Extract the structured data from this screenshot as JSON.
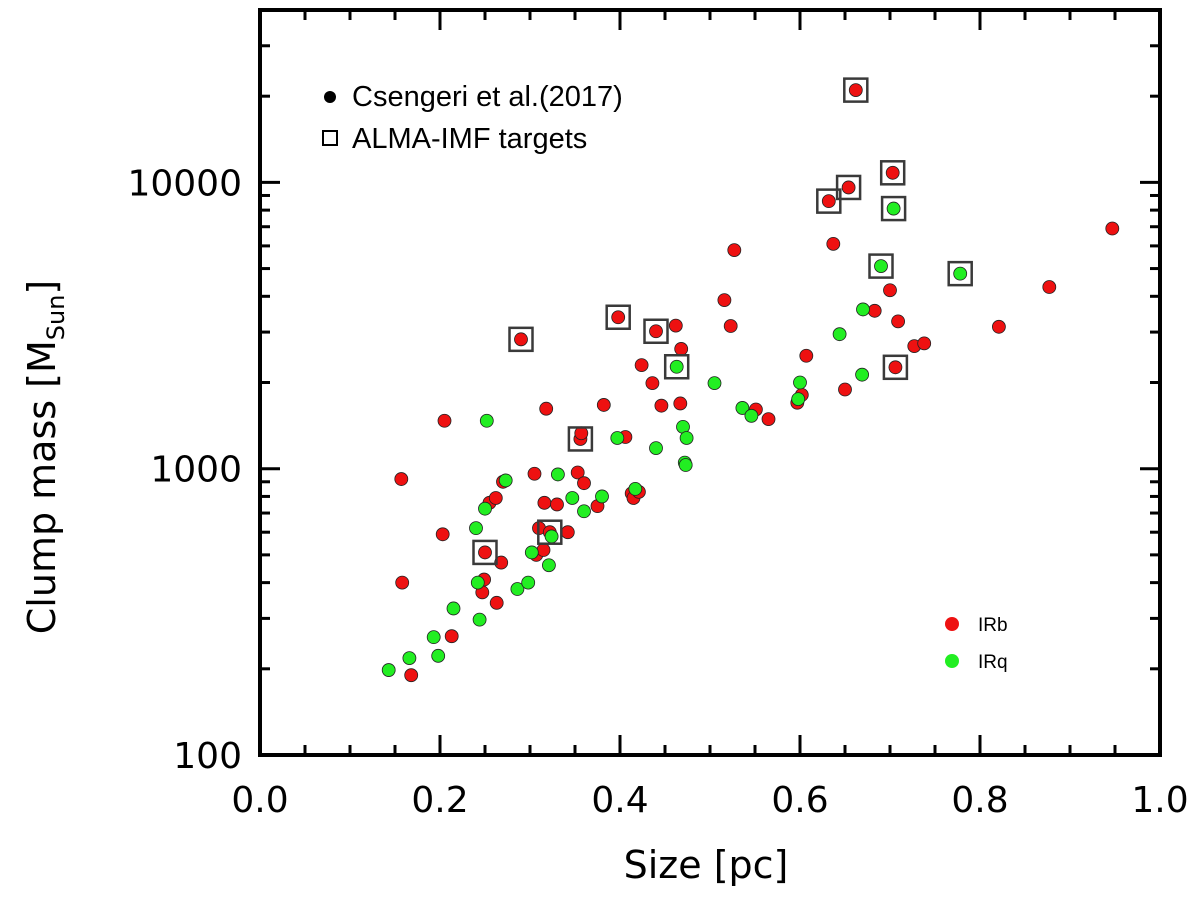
{
  "chart_data": {
    "type": "scatter",
    "xlabel": "Size [pc]",
    "ylabel": {
      "main": "Clump mass ",
      "bracket_open": "[",
      "symbol": "M",
      "subscript": "Sun",
      "bracket_close": "]"
    },
    "xlim": [
      0.0,
      1.0
    ],
    "ylim": [
      100,
      40000
    ],
    "yscale": "log",
    "x_ticks": [
      "0.0",
      "0.2",
      "0.4",
      "0.6",
      "0.8",
      "1.0"
    ],
    "x_tick_values": [
      0.0,
      0.2,
      0.4,
      0.6,
      0.8,
      1.0
    ],
    "y_ticks": [
      "100",
      "1000",
      "10000"
    ],
    "y_tick_values": [
      100,
      1000,
      10000
    ],
    "legend_top": [
      {
        "marker": "filled-circle",
        "label": "Csengeri et al.(2017)"
      },
      {
        "marker": "open-square",
        "label": "ALMA-IMF targets"
      }
    ],
    "legend_bottom": [
      {
        "name": "IRb",
        "color": "#ee1111"
      },
      {
        "name": "IRq",
        "color": "#22ee22"
      }
    ],
    "series": [
      {
        "name": "IRb",
        "color": "#ee1111",
        "points": [
          [
            0.157,
            920
          ],
          [
            0.158,
            400
          ],
          [
            0.168,
            190
          ],
          [
            0.203,
            590
          ],
          [
            0.205,
            1470
          ],
          [
            0.213,
            260
          ],
          [
            0.247,
            370
          ],
          [
            0.249,
            410
          ],
          [
            0.25,
            510
          ],
          [
            0.255,
            760
          ],
          [
            0.262,
            790
          ],
          [
            0.263,
            340
          ],
          [
            0.268,
            470
          ],
          [
            0.27,
            900
          ],
          [
            0.29,
            2830
          ],
          [
            0.305,
            960
          ],
          [
            0.307,
            500
          ],
          [
            0.31,
            620
          ],
          [
            0.315,
            520
          ],
          [
            0.316,
            760
          ],
          [
            0.318,
            1620
          ],
          [
            0.322,
            600
          ],
          [
            0.33,
            750
          ],
          [
            0.342,
            600
          ],
          [
            0.353,
            970
          ],
          [
            0.356,
            1270
          ],
          [
            0.357,
            1330
          ],
          [
            0.36,
            890
          ],
          [
            0.375,
            740
          ],
          [
            0.382,
            1670
          ],
          [
            0.398,
            3380
          ],
          [
            0.406,
            1290
          ],
          [
            0.413,
            820
          ],
          [
            0.415,
            790
          ],
          [
            0.421,
            830
          ],
          [
            0.424,
            2300
          ],
          [
            0.436,
            1990
          ],
          [
            0.44,
            3020
          ],
          [
            0.446,
            1660
          ],
          [
            0.462,
            3160
          ],
          [
            0.467,
            1690
          ],
          [
            0.468,
            2620
          ],
          [
            0.516,
            3880
          ],
          [
            0.523,
            3150
          ],
          [
            0.527,
            5800
          ],
          [
            0.551,
            1610
          ],
          [
            0.565,
            1490
          ],
          [
            0.597,
            1700
          ],
          [
            0.602,
            1810
          ],
          [
            0.607,
            2480
          ],
          [
            0.632,
            8600
          ],
          [
            0.637,
            6100
          ],
          [
            0.65,
            1890
          ],
          [
            0.654,
            9600
          ],
          [
            0.662,
            21000
          ],
          [
            0.683,
            3560
          ],
          [
            0.7,
            4200
          ],
          [
            0.703,
            10800
          ],
          [
            0.706,
            2260
          ],
          [
            0.709,
            3270
          ],
          [
            0.727,
            2680
          ],
          [
            0.738,
            2740
          ],
          [
            0.821,
            3130
          ],
          [
            0.877,
            4310
          ],
          [
            0.947,
            6900
          ]
        ]
      },
      {
        "name": "IRq",
        "color": "#22ee22",
        "points": [
          [
            0.143,
            198
          ],
          [
            0.166,
            218
          ],
          [
            0.193,
            258
          ],
          [
            0.198,
            222
          ],
          [
            0.215,
            325
          ],
          [
            0.24,
            620
          ],
          [
            0.242,
            400
          ],
          [
            0.244,
            297
          ],
          [
            0.25,
            725
          ],
          [
            0.252,
            1470
          ],
          [
            0.273,
            910
          ],
          [
            0.286,
            380
          ],
          [
            0.298,
            400
          ],
          [
            0.302,
            510
          ],
          [
            0.321,
            460
          ],
          [
            0.324,
            580
          ],
          [
            0.331,
            955
          ],
          [
            0.347,
            790
          ],
          [
            0.36,
            710
          ],
          [
            0.38,
            800
          ],
          [
            0.397,
            1280
          ],
          [
            0.417,
            850
          ],
          [
            0.44,
            1180
          ],
          [
            0.463,
            2270
          ],
          [
            0.47,
            1400
          ],
          [
            0.472,
            1050
          ],
          [
            0.473,
            1030
          ],
          [
            0.474,
            1280
          ],
          [
            0.505,
            1990
          ],
          [
            0.536,
            1630
          ],
          [
            0.546,
            1530
          ],
          [
            0.598,
            1750
          ],
          [
            0.6,
            2000
          ],
          [
            0.644,
            2950
          ],
          [
            0.669,
            2130
          ],
          [
            0.67,
            3600
          ],
          [
            0.69,
            5100
          ],
          [
            0.704,
            8100
          ],
          [
            0.778,
            4800
          ]
        ]
      }
    ],
    "alma_imf_targets": [
      [
        0.25,
        510
      ],
      [
        0.29,
        2830
      ],
      [
        0.322,
        600
      ],
      [
        0.356,
        1270
      ],
      [
        0.398,
        3380
      ],
      [
        0.44,
        3020
      ],
      [
        0.463,
        2270
      ],
      [
        0.632,
        8600
      ],
      [
        0.654,
        9600
      ],
      [
        0.662,
        21000
      ],
      [
        0.69,
        5100
      ],
      [
        0.703,
        10800
      ],
      [
        0.704,
        8100
      ],
      [
        0.706,
        2260
      ],
      [
        0.778,
        4800
      ]
    ]
  }
}
